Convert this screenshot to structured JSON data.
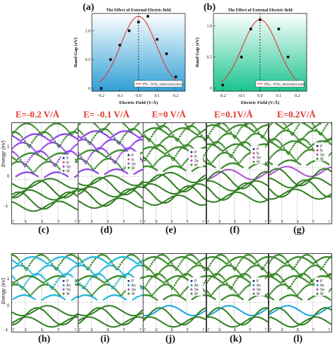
{
  "top_charts": {
    "a": {
      "label": "(a)",
      "title": "The Effect of External Electric field",
      "xlabel": "Electric Field (V/Å)",
      "ylabel": "Band Gap (eV)",
      "legend": "PN—WSe₂ heterostructures",
      "xticks": [
        "-0.2",
        "-0.1",
        "0.0",
        "0.1",
        "0.2"
      ],
      "yticks": [
        "0",
        "0.5",
        "1.0"
      ],
      "color": "#2f9fd6"
    },
    "b": {
      "label": "(b)",
      "title": "The Effect of External Electric field",
      "xlabel": "Electric Field (V/Å)",
      "ylabel": "Band Gap (eV)",
      "legend": "PAs—WSe₂ heterostructures",
      "xticks": [
        "-0.2",
        "-0.1",
        "0.0",
        "0.1",
        "0.2"
      ],
      "yticks": [
        "0",
        "0.5",
        "1.0"
      ],
      "color": "#19c48f"
    }
  },
  "chart_data": [
    {
      "type": "scatter",
      "title": "The Effect of External Electric field",
      "xlabel": "Electric Field (V/Å)",
      "ylabel": "Band Gap (eV)",
      "xlim": [
        -0.25,
        0.25
      ],
      "ylim": [
        -0.05,
        1.3
      ],
      "series": [
        {
          "name": "PN—WSe₂ heterostructures",
          "x": [
            -0.2,
            -0.15,
            -0.1,
            -0.05,
            0.0,
            0.05,
            0.1,
            0.15,
            0.2
          ],
          "values": [
            0.0,
            0.5,
            0.75,
            1.0,
            1.15,
            1.25,
            0.85,
            0.6,
            0.2
          ]
        }
      ]
    },
    {
      "type": "scatter",
      "title": "The Effect of External Electric field",
      "xlabel": "Electric Field (V/Å)",
      "ylabel": "Band Gap (eV)",
      "xlim": [
        -0.25,
        0.25
      ],
      "ylim": [
        -0.05,
        1.2
      ],
      "series": [
        {
          "name": "PAs—WSe₂ heterostructures",
          "x": [
            -0.2,
            -0.1,
            -0.05,
            0.0,
            0.1,
            0.15,
            0.2
          ],
          "values": [
            0.05,
            0.5,
            0.95,
            1.1,
            0.95,
            0.5,
            0.05
          ]
        }
      ]
    }
  ],
  "efield_labels": [
    "E=-0.2 V/Å",
    "E= -0.1 V/Å",
    "E=0 V/Å",
    "E=0.1V/Å",
    "E=0.2V/Å"
  ],
  "band_axis": {
    "ylabel": "Energy (eV)",
    "yticks_row1": [
      "1",
      "0",
      "-1"
    ],
    "yticks_row2": [
      "1",
      "0",
      "-1"
    ],
    "kpath": [
      "Γ",
      "X",
      "S",
      "Y",
      "Γ"
    ]
  },
  "row1": {
    "sub_labels": [
      "(c)",
      "(d)",
      "(e)",
      "(f)",
      "(g)"
    ],
    "legend": [
      "P",
      "N",
      "Se",
      "W"
    ],
    "legend_colors": [
      "#1e2f9a",
      "#e04080",
      "#a040c8",
      "#2e8b2e"
    ],
    "conduction_color": "#9b59d0",
    "valence_color": "#2e7a1e",
    "colors": {
      "cond": "#8e44e6",
      "val": "#2f7d20",
      "W": "#3b8a2a",
      "alt": "#b04cd6"
    }
  },
  "row2": {
    "sub_labels": [
      "(h)",
      "(i)",
      "(j)",
      "(k)",
      "(l)"
    ],
    "legend": [
      "P",
      "As",
      "Se",
      "W"
    ],
    "legend_colors": [
      "#1e2f9a",
      "#2b9ad8",
      "#a040c8",
      "#2e8b2e"
    ],
    "colors": {
      "cond": "#22b8d8",
      "val": "#2f7d20",
      "W": "#3b8a2a",
      "alt": "#1aa3e0"
    }
  }
}
